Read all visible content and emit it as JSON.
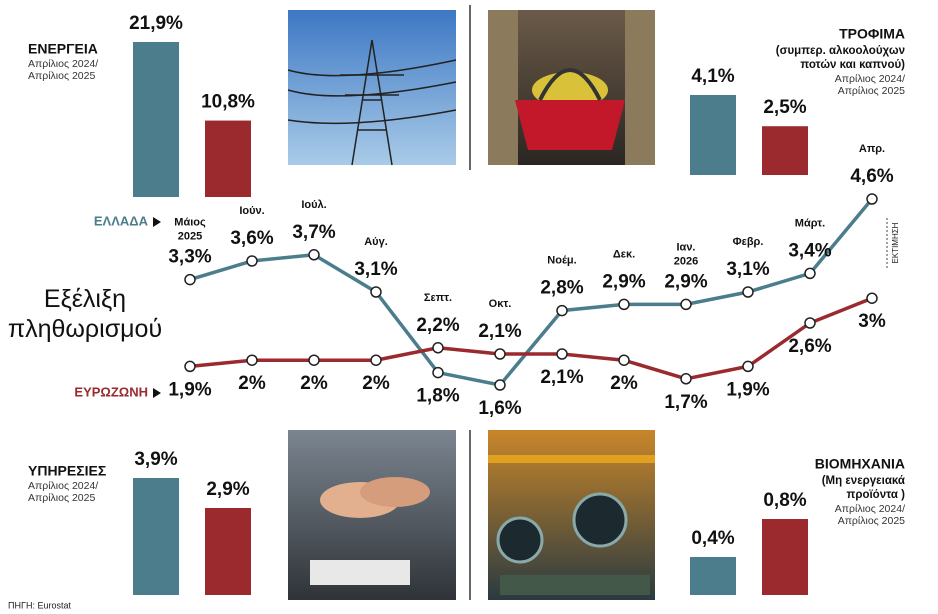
{
  "chart_data": [
    {
      "type": "line",
      "title": "Εξέλιξη πληθωρισμού",
      "categories": [
        "Μάιος 2025",
        "Ιούν.",
        "Ιούλ.",
        "Αύγ.",
        "Σεπτ.",
        "Οκτ.",
        "Νοέμ.",
        "Δεκ.",
        "Ιαν. 2026",
        "Φεβρ.",
        "Μάρτ.",
        "Απρ."
      ],
      "series": [
        {
          "name": "ΕΛΛΑΔΑ",
          "color": "#4b7d8c",
          "values": [
            3.3,
            3.6,
            3.7,
            3.1,
            1.8,
            1.6,
            2.8,
            2.9,
            2.9,
            3.1,
            3.4,
            4.6
          ],
          "value_labels": [
            "3,3%",
            "3,6%",
            "3,7%",
            "3,1%",
            "1,8%",
            "1,6%",
            "2,8%",
            "2,9%",
            "2,9%",
            "3,1%",
            "3,4%",
            "4,6%"
          ]
        },
        {
          "name": "ΕΥΡΩΖΩΝΗ",
          "color": "#9a2a2e",
          "values": [
            1.9,
            2,
            2,
            2,
            2.2,
            2.1,
            2.1,
            2,
            1.7,
            1.9,
            2.6,
            3
          ],
          "value_labels": [
            "1,9%",
            "2%",
            "2%",
            "2%",
            "2,2%",
            "2,1%",
            "2,1%",
            "2%",
            "1,7%",
            "1,9%",
            "2,6%",
            "3%"
          ]
        }
      ],
      "annotation": "ΕΚΤΙΜΗΣΗ"
    },
    {
      "type": "bar",
      "title": "ΕΝΕΡΓΕΙΑ",
      "subtitle": [
        "Απρίλιος 2024/",
        "Απρίλιος 2025"
      ],
      "categories": [
        null,
        null
      ],
      "values": [
        21.9,
        10.8
      ],
      "value_labels": [
        "21,9%",
        "10,8%"
      ],
      "colors": [
        "#4b7d8c",
        "#9a2a2e"
      ]
    },
    {
      "type": "bar",
      "title": "ΤΡΟΦΙΜΑ",
      "note": [
        "(συμπερ. αλκοολούχων",
        "ποτών και καπνού)"
      ],
      "subtitle": [
        "Απρίλιος 2024/",
        "Απρίλιος 2025"
      ],
      "categories": [
        null,
        null
      ],
      "values": [
        4.1,
        2.5
      ],
      "value_labels": [
        "4,1%",
        "2,5%"
      ],
      "colors": [
        "#4b7d8c",
        "#9a2a2e"
      ]
    },
    {
      "type": "bar",
      "title": "ΥΠΗΡΕΣΙΕΣ",
      "subtitle": [
        "Απρίλιος 2024/",
        "Απρίλιος 2025"
      ],
      "categories": [
        null,
        null
      ],
      "values": [
        3.9,
        2.9
      ],
      "value_labels": [
        "3,9%",
        "2,9%"
      ],
      "colors": [
        "#4b7d8c",
        "#9a2a2e"
      ]
    },
    {
      "type": "bar",
      "title": "ΒΙΟΜΗΧΑΝΙΑ",
      "note": [
        "(Μη ενεργειακά",
        "προϊόντα )"
      ],
      "subtitle": [
        "Απρίλιος 2024/",
        "Απρίλιος 2025"
      ],
      "categories": [
        null,
        null
      ],
      "values": [
        0.4,
        0.8
      ],
      "value_labels": [
        "0,4%",
        "0,8%"
      ],
      "colors": [
        "#4b7d8c",
        "#9a2a2e"
      ]
    }
  ],
  "source": "ΠΗΓΗ: Eurostat"
}
